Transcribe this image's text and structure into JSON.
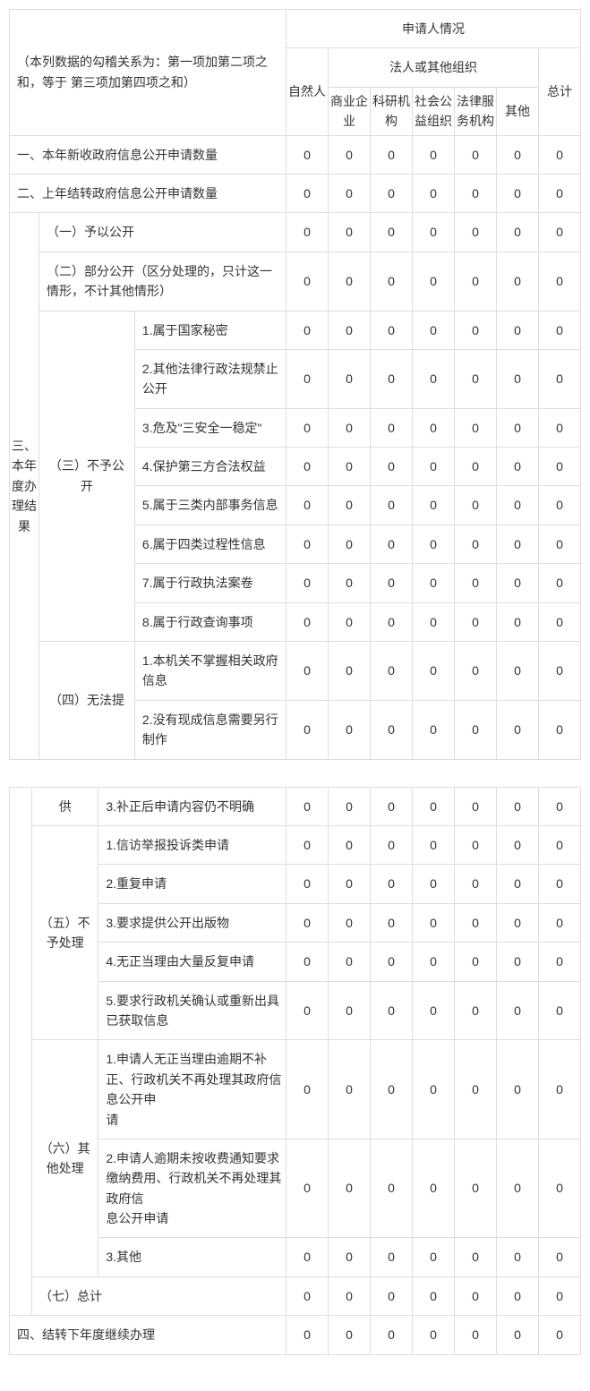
{
  "header": {
    "note": "（本列数据的勾稽关系为：第一项加第二项之和，等于 第三项加第四项之和）",
    "applicant_situation": "申请人情况",
    "natural_person": "自然人",
    "legal_org": "法人或其他组织",
    "commercial": "商业企业",
    "scientific": "科研机构",
    "social": "社会公益组织",
    "legal_service": "法律服务机构",
    "other": "其他",
    "total": "总计"
  },
  "rows": {
    "r1": "一、本年新收政府信息公开申请数量",
    "r2": "二、上年结转政府信息公开申请数量",
    "sec3": "三、本年度办理结果",
    "r3_1": "（一）予以公开",
    "r3_2": "（二）部分公开（区分处理的，只计这一情形，不计其他情形）",
    "r3_3": "（三）不予公开",
    "r3_3_1": "1.属于国家秘密",
    "r3_3_2": "2.其他法律行政法规禁止公开",
    "r3_3_3": "3.危及\"三安全一稳定\"",
    "r3_3_4": "4.保护第三方合法权益",
    "r3_3_5": "5.属于三类内部事务信息",
    "r3_3_6": "6.属于四类过程性信息",
    "r3_3_7": "7.属于行政执法案卷",
    "r3_3_8": "8.属于行政查询事项",
    "r3_4a": "（四）无法提",
    "r3_4b": "供",
    "r3_4_1": "1.本机关不掌握相关政府信息",
    "r3_4_2": "2.没有现成信息需要另行制作",
    "r3_4_3": "3.补正后申请内容仍不明确",
    "r3_5": "（五）不予处理",
    "r3_5_1": "1.信访举报投诉类申请",
    "r3_5_2": "2.重复申请",
    "r3_5_3": "3.要求提供公开出版物",
    "r3_5_4": "4.无正当理由大量反复申请",
    "r3_5_5": "5.要求行政机关确认或重新出具已获取信息",
    "r3_6": "（六）其他处理",
    "r3_6_1a": "1.申请人无正当理由逾期不补正、行政机关不再处理其政府信息公开申",
    "r3_6_1b": "请",
    "r3_6_2a": "2.申请人逾期未按收费通知要求缴纳费用、行政机关不再处理其政府信",
    "r3_6_2b": "息公开申请",
    "r3_6_3": "3.其他",
    "r3_7": "（七）总计",
    "r4": "四、结转下年度继续办理"
  },
  "zero": "0"
}
